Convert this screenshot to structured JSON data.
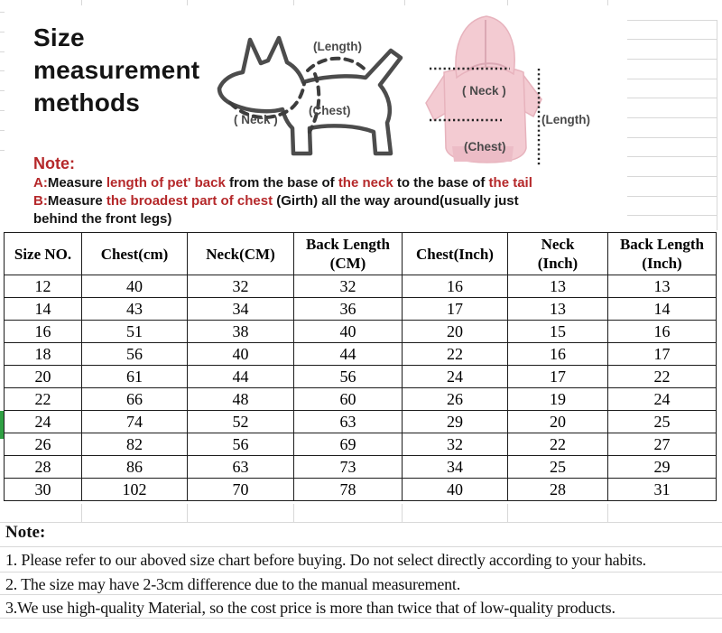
{
  "title": "Size\nmeasurement\nmethods",
  "colors": {
    "red_text": "#b5282a",
    "pink_hoodie": "#f3cbd2",
    "pink_hoodie_dark": "#ecbcc6",
    "diagram_outline": "#4c4c4c",
    "grid_line": "#d8d8d8",
    "green_mark": "#2fa043"
  },
  "dog_diagram": {
    "length_label": "(Length)",
    "neck_label": "( Neck )",
    "chest_label": "(Chest)"
  },
  "hoodie_diagram": {
    "neck_label": "( Neck )",
    "length_label": "(Length)",
    "chest_label": "(Chest)"
  },
  "note_top": {
    "heading": "Note:",
    "line_a": [
      {
        "t": "A:",
        "c": "r"
      },
      {
        "t": "Measure ",
        "c": "k"
      },
      {
        "t": "length of pet' back ",
        "c": "r"
      },
      {
        "t": "from the base of ",
        "c": "k"
      },
      {
        "t": "the neck ",
        "c": "r"
      },
      {
        "t": "to the base of ",
        "c": "k"
      },
      {
        "t": "the tail",
        "c": "r"
      }
    ],
    "line_b": [
      {
        "t": "B:",
        "c": "r"
      },
      {
        "t": "Measure ",
        "c": "k"
      },
      {
        "t": "the broadest part of chest ",
        "c": "r"
      },
      {
        "t": "(Girth) all the way around(usually just",
        "c": "k"
      }
    ],
    "line_b2": "behind the front legs)"
  },
  "table": {
    "headers": [
      "Size NO.",
      "Chest(cm)",
      "Neck(CM)",
      "Back Length\n(CM)",
      "Chest(Inch)",
      "Neck\n(Inch)",
      "Back Length\n(Inch)"
    ],
    "rows": [
      [
        "12",
        "40",
        "32",
        "32",
        "16",
        "13",
        "13"
      ],
      [
        "14",
        "43",
        "34",
        "36",
        "17",
        "13",
        "14"
      ],
      [
        "16",
        "51",
        "38",
        "40",
        "20",
        "15",
        "16"
      ],
      [
        "18",
        "56",
        "40",
        "44",
        "22",
        "16",
        "17"
      ],
      [
        "20",
        "61",
        "44",
        "56",
        "24",
        "17",
        "22"
      ],
      [
        "22",
        "66",
        "48",
        "60",
        "26",
        "19",
        "24"
      ],
      [
        "24",
        "74",
        "52",
        "63",
        "29",
        "20",
        "25"
      ],
      [
        "26",
        "82",
        "56",
        "69",
        "32",
        "22",
        "27"
      ],
      [
        "28",
        "86",
        "63",
        "73",
        "34",
        "25",
        "29"
      ],
      [
        "30",
        "102",
        "70",
        "78",
        "40",
        "28",
        "31"
      ]
    ]
  },
  "note_bottom": {
    "heading": "Note:",
    "lines": [
      "1. Please refer to our aboved size chart before buying. Do not select directly according to your  habits.",
      "2. The size may have 2-3cm difference due to the manual measurement.",
      "3.We use high-quality Material, so the cost price is more than twice that of low-quality products."
    ]
  }
}
